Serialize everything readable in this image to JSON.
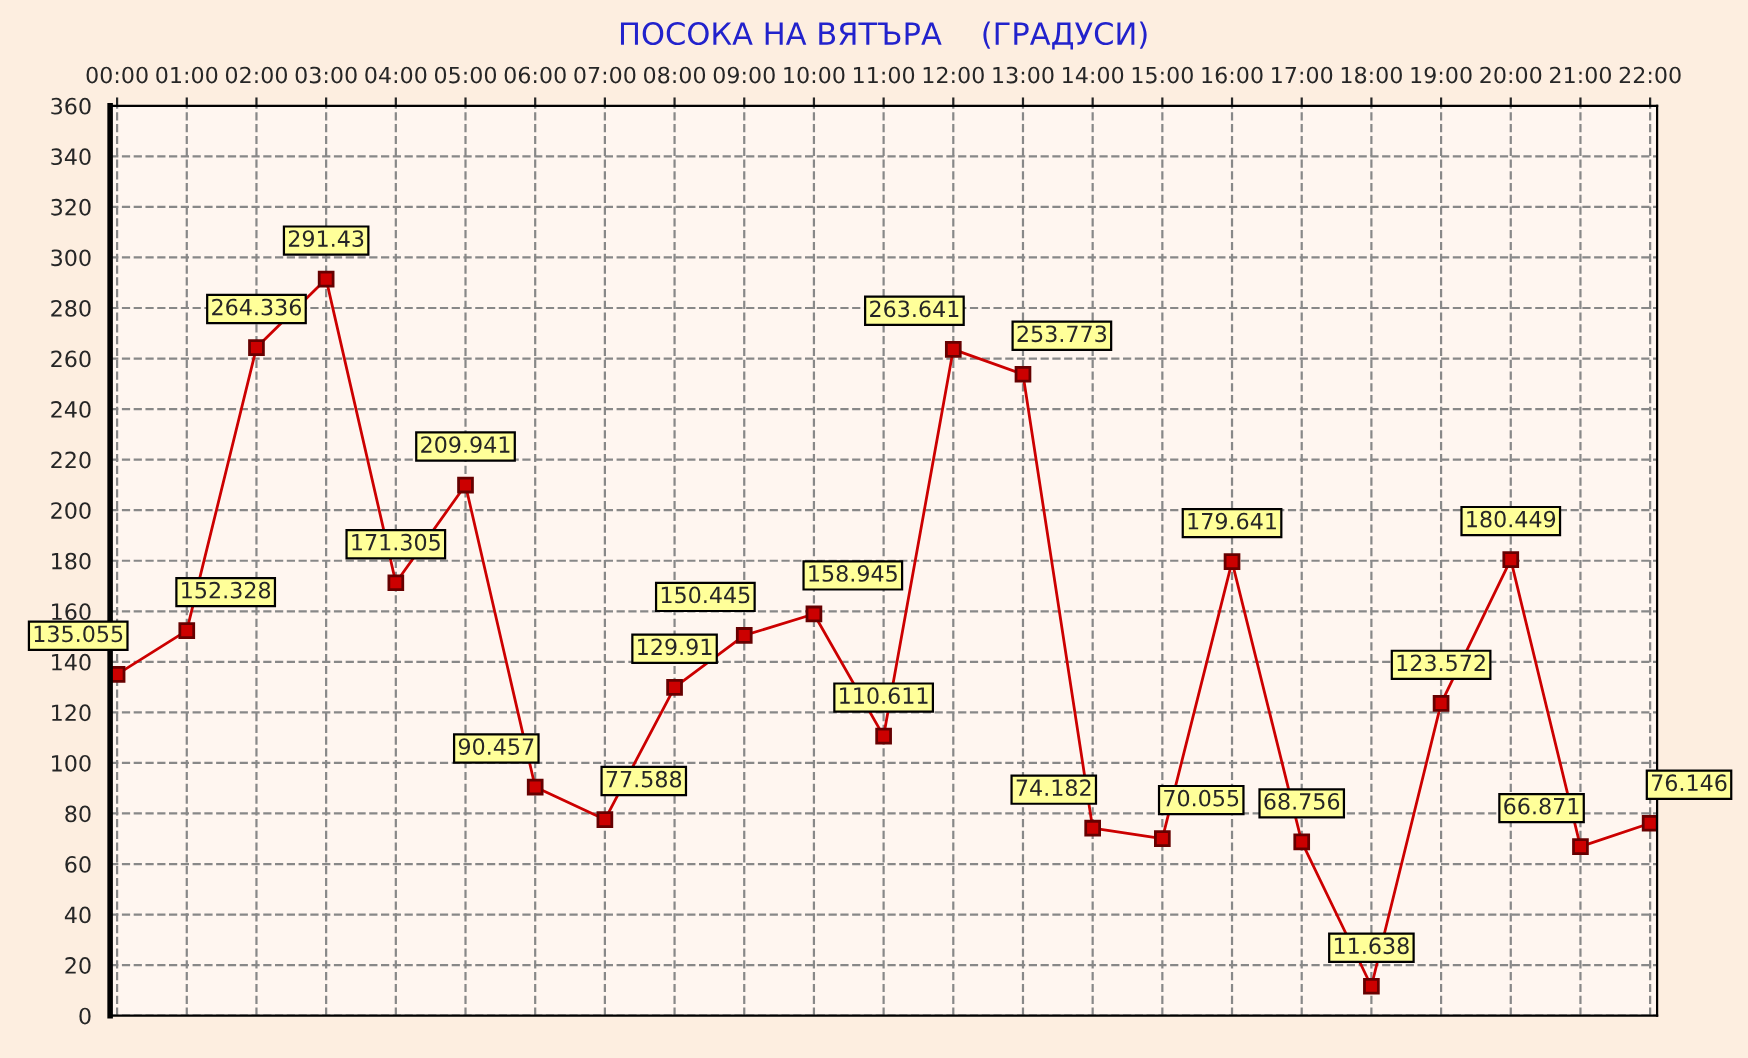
{
  "chart_data": {
    "type": "line",
    "title": "ПОСОКА НА ВЯТЪРА    (ГРАДУСИ)",
    "categories": [
      "00:00",
      "01:00",
      "02:00",
      "03:00",
      "04:00",
      "05:00",
      "06:00",
      "07:00",
      "08:00",
      "09:00",
      "10:00",
      "11:00",
      "12:00",
      "13:00",
      "14:00",
      "15:00",
      "16:00",
      "17:00",
      "18:00",
      "19:00",
      "20:00",
      "21:00",
      "22:00"
    ],
    "series": [
      {
        "color": "#cc0000",
        "values": [
          135.055,
          152.328,
          264.336,
          291.43,
          171.305,
          209.941,
          90.457,
          77.588,
          129.91,
          150.445,
          158.945,
          110.611,
          263.641,
          253.773,
          74.182,
          70.055,
          179.641,
          68.756,
          11.638,
          123.572,
          180.449,
          66.871,
          76.146
        ]
      }
    ],
    "ylim": [
      0,
      360
    ],
    "yticks": [
      0,
      20,
      40,
      60,
      80,
      100,
      120,
      140,
      160,
      180,
      200,
      220,
      240,
      260,
      280,
      300,
      320,
      340,
      360
    ],
    "grid": true,
    "marker": "square",
    "line_style": "solid",
    "data_labels": true
  }
}
